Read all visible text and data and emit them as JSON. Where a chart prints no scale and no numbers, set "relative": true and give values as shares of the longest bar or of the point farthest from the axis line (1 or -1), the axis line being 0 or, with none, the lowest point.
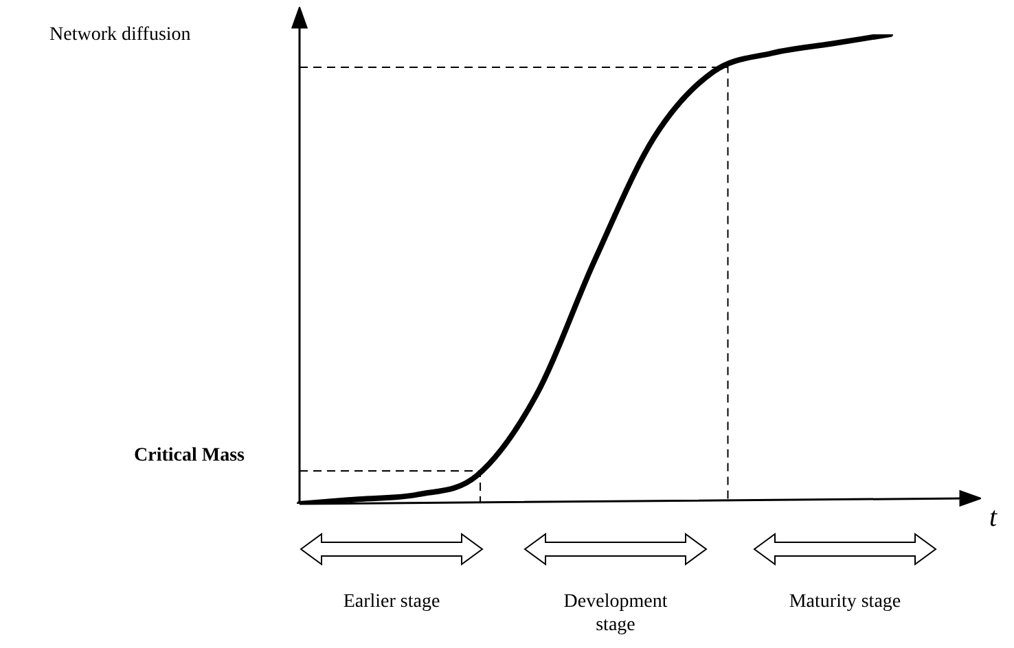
{
  "chart_data": {
    "type": "line",
    "relative": true,
    "ylabel": "Network diffusion",
    "xlabel": "t",
    "categories": [
      null,
      null,
      null,
      null,
      null,
      null,
      null,
      null,
      null,
      null,
      null
    ],
    "series": [
      {
        "color": "#000000",
        "values": [
          0,
          0.01,
          0.02,
          0.06,
          0.23,
          0.52,
          0.78,
          0.92,
          0.96,
          0.98,
          1
        ]
      }
    ],
    "marker": "none",
    "line_style": "solid",
    "legend": false,
    "ref_lines": [
      {
        "axis": "y",
        "value": 0.07,
        "label": "Critical Mass",
        "color": "#000000",
        "line_style": "dashed"
      },
      {
        "axis": "y",
        "value": 0.93,
        "color": "#000000",
        "line_style": "dashed"
      }
    ],
    "annotations": [
      "Earlier stage",
      "Development stage",
      "Maturity stage"
    ]
  }
}
